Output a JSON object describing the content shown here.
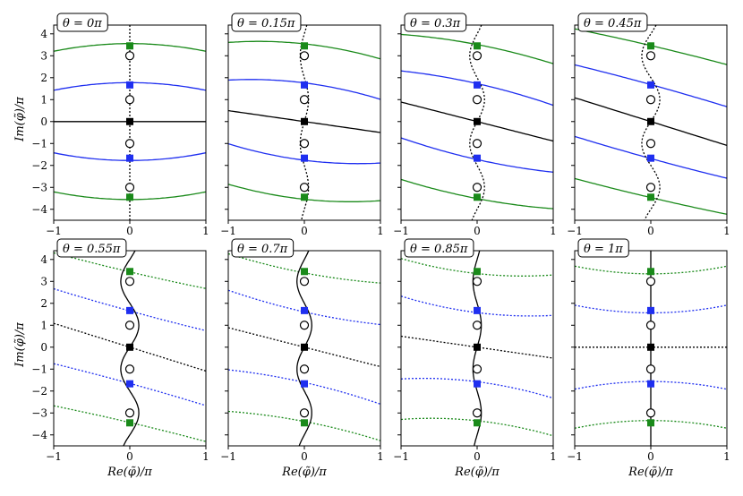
{
  "figure": {
    "xlabel": "Re(φ̃)/π",
    "ylabel": "Im(φ̃)/π"
  },
  "chart_data": [
    {
      "type": "line",
      "title": "θ = 0π",
      "theta": 0,
      "xlim": [
        -1,
        1
      ],
      "ylim": [
        -4.5,
        4.4
      ],
      "xticks": [
        "−1",
        "0",
        "1"
      ],
      "yticks": [
        "−4",
        "−3",
        "−2",
        "−1",
        "0",
        "1",
        "2",
        "3",
        "4"
      ],
      "squares": [
        {
          "y": 3.45,
          "color": "green"
        },
        {
          "y": 1.67,
          "color": "blue"
        },
        {
          "y": 0,
          "color": "black"
        },
        {
          "y": -1.67,
          "color": "blue"
        },
        {
          "y": -3.45,
          "color": "green"
        }
      ],
      "circles": [
        3,
        1,
        -1,
        -3
      ]
    },
    {
      "type": "line",
      "title": "θ = 0.15π",
      "theta": 0.15,
      "xlim": [
        -1,
        1
      ],
      "ylim": [
        -4.5,
        4.4
      ],
      "xticks": [
        "−1",
        "0",
        "1"
      ],
      "yticks": [],
      "squares": [
        {
          "y": 3.45,
          "color": "green"
        },
        {
          "y": 1.67,
          "color": "blue"
        },
        {
          "y": 0,
          "color": "black"
        },
        {
          "y": -1.67,
          "color": "blue"
        },
        {
          "y": -3.45,
          "color": "green"
        }
      ],
      "circles": [
        3,
        1,
        -1,
        -3
      ]
    },
    {
      "type": "line",
      "title": "θ = 0.3π",
      "theta": 0.3,
      "xlim": [
        -1,
        1
      ],
      "ylim": [
        -4.5,
        4.4
      ],
      "xticks": [
        "−1",
        "0",
        "1"
      ],
      "yticks": [],
      "squares": [
        {
          "y": 3.45,
          "color": "green"
        },
        {
          "y": 1.67,
          "color": "blue"
        },
        {
          "y": 0,
          "color": "black"
        },
        {
          "y": -1.67,
          "color": "blue"
        },
        {
          "y": -3.45,
          "color": "green"
        }
      ],
      "circles": [
        3,
        1,
        -1,
        -3
      ]
    },
    {
      "type": "line",
      "title": "θ = 0.45π",
      "theta": 0.45,
      "xlim": [
        -1,
        1
      ],
      "ylim": [
        -4.5,
        4.4
      ],
      "xticks": [
        "−1",
        "0",
        "1"
      ],
      "yticks": [],
      "squares": [
        {
          "y": 3.45,
          "color": "green"
        },
        {
          "y": 1.67,
          "color": "blue"
        },
        {
          "y": 0,
          "color": "black"
        },
        {
          "y": -1.67,
          "color": "blue"
        },
        {
          "y": -3.45,
          "color": "green"
        }
      ],
      "circles": [
        3,
        1,
        -1,
        -3
      ]
    },
    {
      "type": "line",
      "title": "θ = 0.55π",
      "theta": 0.55,
      "xlim": [
        -1,
        1
      ],
      "ylim": [
        -4.5,
        4.4
      ],
      "xticks": [
        "−1",
        "0",
        "1"
      ],
      "yticks": [
        "−4",
        "−3",
        "−2",
        "−1",
        "0",
        "1",
        "2",
        "3",
        "4"
      ],
      "squares": [
        {
          "y": 3.45,
          "color": "green"
        },
        {
          "y": 1.67,
          "color": "blue"
        },
        {
          "y": 0,
          "color": "black"
        },
        {
          "y": -1.67,
          "color": "blue"
        },
        {
          "y": -3.45,
          "color": "green"
        }
      ],
      "circles": [
        3,
        1,
        -1,
        -3
      ]
    },
    {
      "type": "line",
      "title": "θ = 0.7π",
      "theta": 0.7,
      "xlim": [
        -1,
        1
      ],
      "ylim": [
        -4.5,
        4.4
      ],
      "xticks": [
        "−1",
        "0",
        "1"
      ],
      "yticks": [],
      "squares": [
        {
          "y": 3.45,
          "color": "green"
        },
        {
          "y": 1.67,
          "color": "blue"
        },
        {
          "y": 0,
          "color": "black"
        },
        {
          "y": -1.67,
          "color": "blue"
        },
        {
          "y": -3.45,
          "color": "green"
        }
      ],
      "circles": [
        3,
        1,
        -1,
        -3
      ]
    },
    {
      "type": "line",
      "title": "θ = 0.85π",
      "theta": 0.85,
      "xlim": [
        -1,
        1
      ],
      "ylim": [
        -4.5,
        4.4
      ],
      "xticks": [
        "−1",
        "0",
        "1"
      ],
      "yticks": [],
      "squares": [
        {
          "y": 3.45,
          "color": "green"
        },
        {
          "y": 1.67,
          "color": "blue"
        },
        {
          "y": 0,
          "color": "black"
        },
        {
          "y": -1.67,
          "color": "blue"
        },
        {
          "y": -3.45,
          "color": "green"
        }
      ],
      "circles": [
        3,
        1,
        -1,
        -3
      ]
    },
    {
      "type": "line",
      "title": "θ = 1π",
      "theta": 1,
      "xlim": [
        -1,
        1
      ],
      "ylim": [
        -4.5,
        4.4
      ],
      "xticks": [
        "−1",
        "0",
        "1"
      ],
      "yticks": [],
      "squares": [
        {
          "y": 3.45,
          "color": "green"
        },
        {
          "y": 1.67,
          "color": "blue"
        },
        {
          "y": 0,
          "color": "black"
        },
        {
          "y": -1.67,
          "color": "blue"
        },
        {
          "y": -3.45,
          "color": "green"
        }
      ],
      "circles": [
        3,
        1,
        -1,
        -3
      ]
    }
  ],
  "colors": {
    "green": "#1a8a1a",
    "blue": "#1f2ff0",
    "black": "#000000"
  }
}
